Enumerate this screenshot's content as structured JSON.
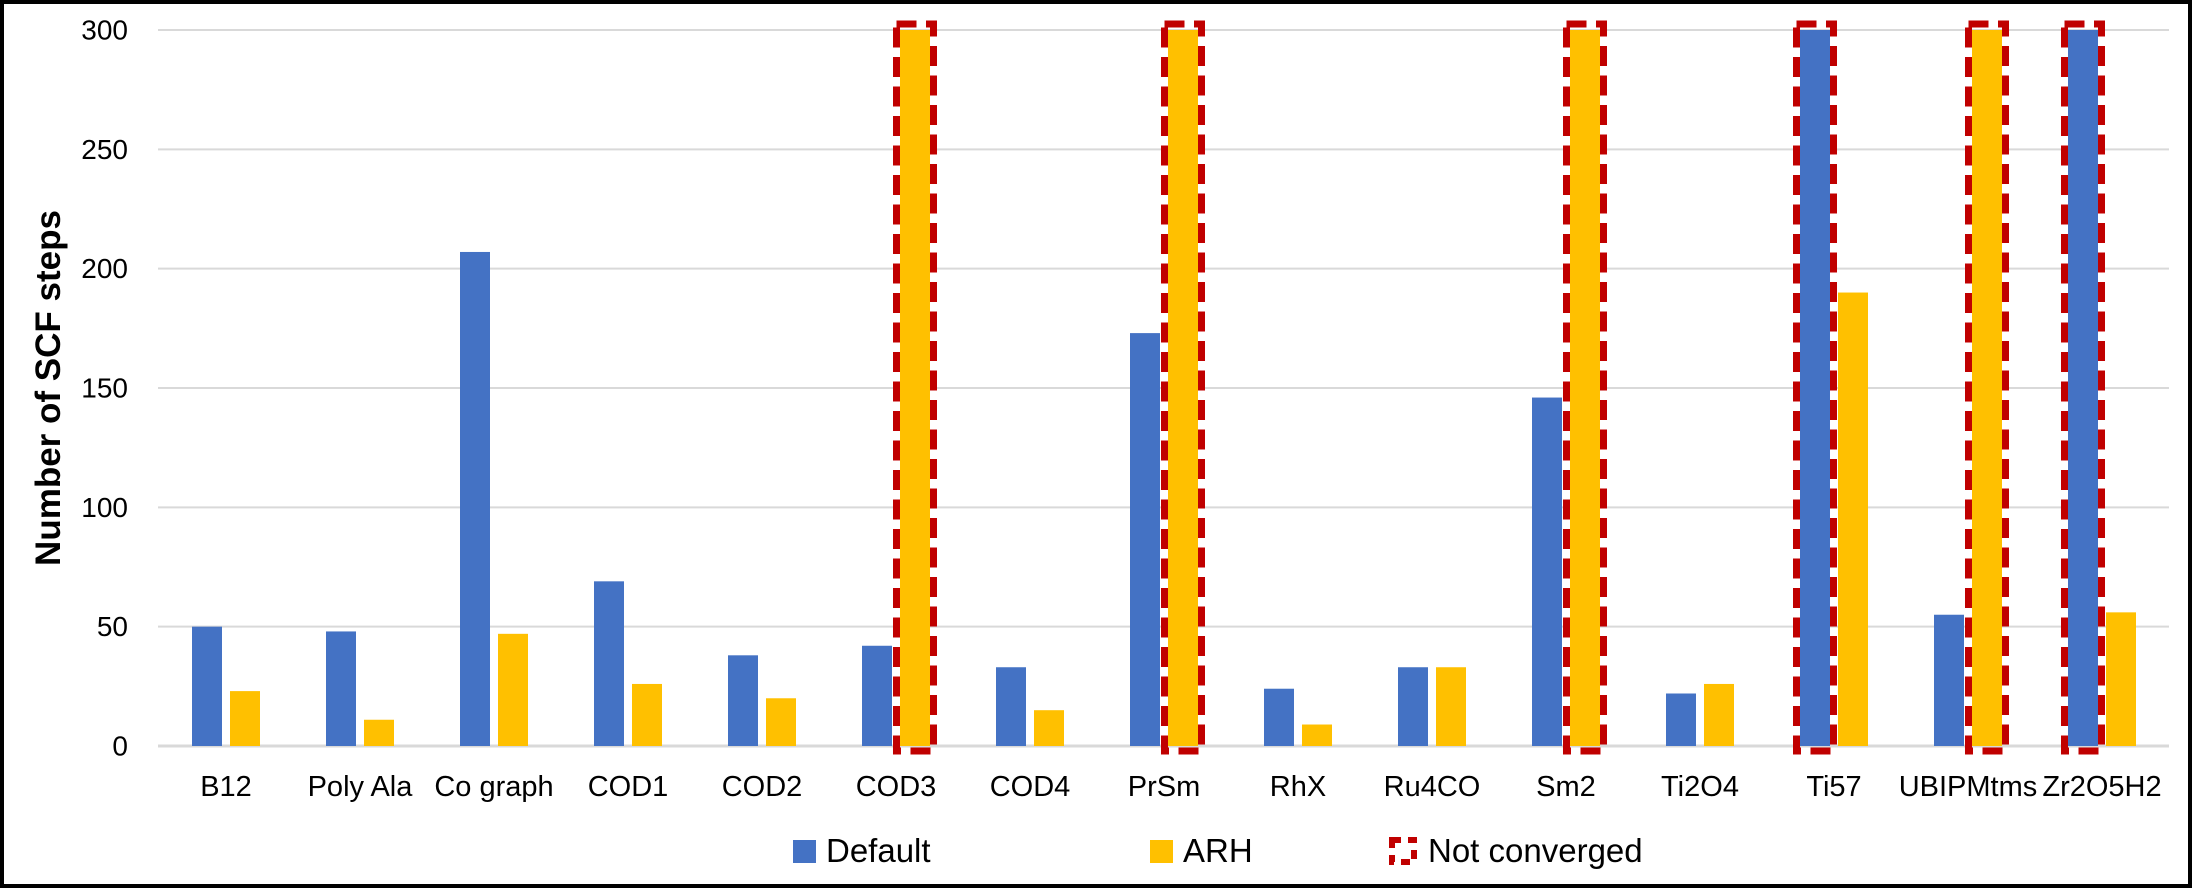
{
  "chart_data": {
    "type": "bar",
    "title": "",
    "xlabel": "",
    "ylabel": "Number of SCF steps",
    "ylim": [
      0,
      300
    ],
    "yticks": [
      0,
      50,
      100,
      150,
      200,
      250,
      300
    ],
    "grid": "horizontal",
    "legend_position": "bottom",
    "categories": [
      "B12",
      "Poly Ala",
      "Co graph",
      "COD1",
      "COD2",
      "COD3",
      "COD4",
      "PrSm",
      "RhX",
      "Ru4CO",
      "Sm2",
      "Ti2O4",
      "Ti57",
      "UBIPMtms",
      "Zr2O5H2"
    ],
    "series": [
      {
        "name": "Default",
        "color": "#4472C4",
        "values": [
          50,
          48,
          207,
          69,
          38,
          42,
          33,
          173,
          24,
          33,
          146,
          22,
          300,
          55,
          300
        ],
        "not_converged": [
          false,
          false,
          false,
          false,
          false,
          false,
          false,
          false,
          false,
          false,
          false,
          false,
          true,
          false,
          true
        ]
      },
      {
        "name": "ARH",
        "color": "#FFC000",
        "values": [
          23,
          11,
          47,
          26,
          20,
          300,
          15,
          300,
          9,
          33,
          300,
          26,
          190,
          300,
          56
        ],
        "not_converged": [
          false,
          false,
          false,
          false,
          false,
          true,
          false,
          true,
          false,
          false,
          true,
          false,
          false,
          true,
          false
        ]
      }
    ],
    "not_converged_note": "Bars capped at axis maximum 300 and outlined with red dashed border",
    "colors": {
      "grid": "#D9D9D9",
      "not_converged_outline": "#C00000",
      "text": "#000000",
      "background": "#FFFFFF",
      "frame_border": "#000000"
    }
  },
  "legend": {
    "labels": [
      "Default",
      "ARH",
      "Not converged"
    ]
  }
}
